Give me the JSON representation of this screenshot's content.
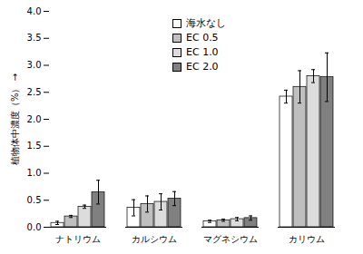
{
  "chart_data": {
    "type": "bar",
    "y_label": "植物体中濃度（%）",
    "categories": [
      "ナトリウム",
      "カルシウム",
      "マグネシウム",
      "カリウム"
    ],
    "series": [
      {
        "name": "海水なし",
        "color": "#ffffff",
        "values": [
          0.08,
          0.36,
          0.11,
          2.42
        ],
        "errors": [
          0.03,
          0.15,
          0.02,
          0.12
        ]
      },
      {
        "name": "EC 0.5",
        "color": "#bfbfbf",
        "values": [
          0.2,
          0.43,
          0.13,
          2.6
        ],
        "errors": [
          0.02,
          0.15,
          0.02,
          0.3
        ]
      },
      {
        "name": "EC 1.0",
        "color": "#dcdcdc",
        "values": [
          0.38,
          0.47,
          0.15,
          2.8
        ],
        "errors": [
          0.03,
          0.15,
          0.03,
          0.12
        ]
      },
      {
        "name": "EC 2.0",
        "color": "#808080",
        "values": [
          0.65,
          0.53,
          0.17,
          2.78
        ],
        "errors": [
          0.22,
          0.13,
          0.04,
          0.45
        ]
      }
    ],
    "ylim": [
      0,
      4
    ],
    "yticks": [
      {
        "value": 0,
        "label": "0.0"
      },
      0.5,
      {
        "value": 1,
        "label": "1.0"
      },
      1.5,
      {
        "value": 2,
        "label": "2.0"
      },
      2.5,
      {
        "value": 3,
        "label": "3.0"
      },
      3.5,
      {
        "value": 4,
        "label": "4.0"
      }
    ],
    "grid": false,
    "legend": "top"
  }
}
